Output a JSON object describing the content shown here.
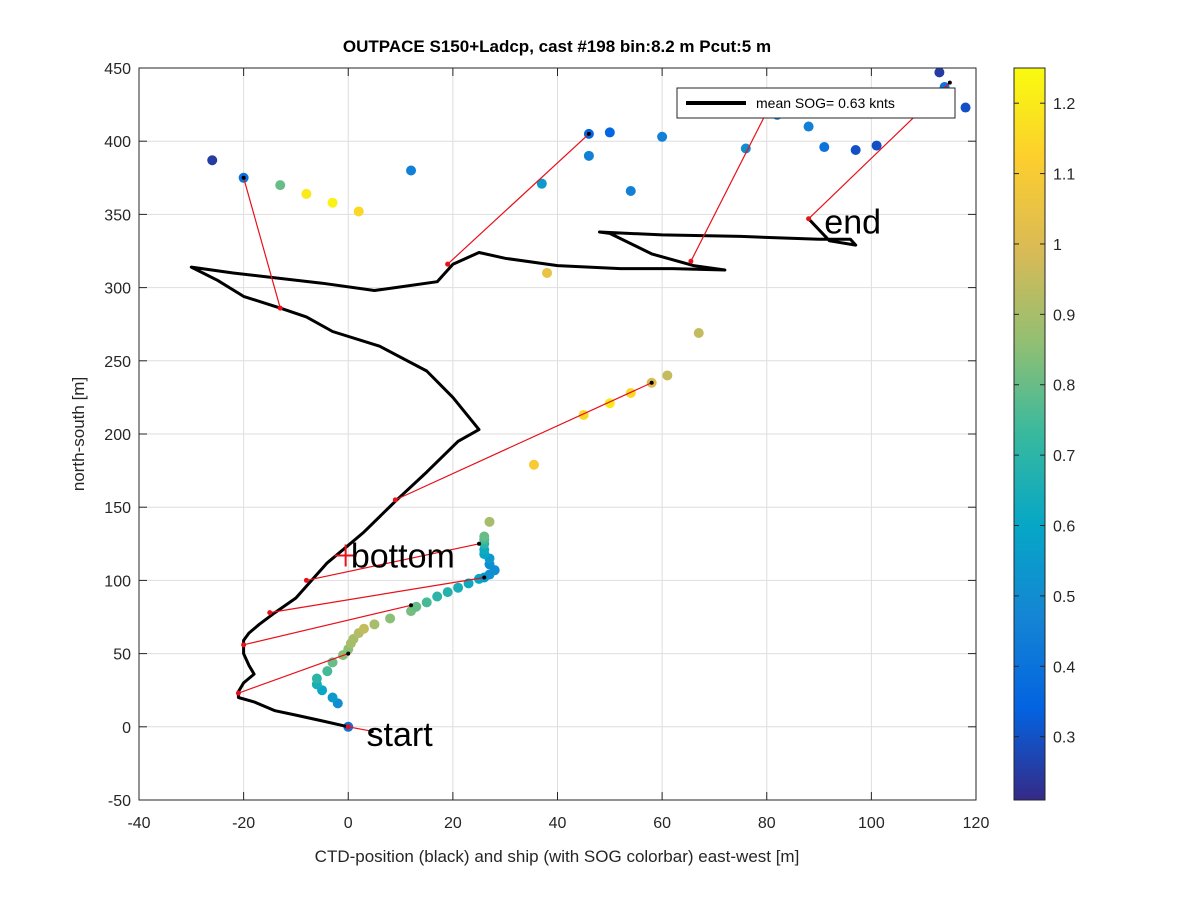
{
  "chart_data": {
    "type": "scatter",
    "title": "OUTPACE S150+Ladcp, cast #198 bin:8.2 m  Pcut:5 m",
    "xlabel": "CTD-position (black) and ship (with SOG colorbar) east-west [m]",
    "ylabel": "north-south [m]",
    "xlim": [
      -40,
      120
    ],
    "ylim": [
      -50,
      450
    ],
    "xticks": [
      "-40",
      "-20",
      "0",
      "20",
      "40",
      "60",
      "80",
      "100",
      "120"
    ],
    "yticks": [
      "-50",
      "0",
      "50",
      "100",
      "150",
      "200",
      "250",
      "300",
      "350",
      "400",
      "450"
    ],
    "grid": true,
    "legend": {
      "placement": "top-right",
      "entry": "mean SOG=  0.63 knts"
    },
    "colorbar": {
      "range": [
        0.21,
        1.25
      ],
      "ticks": [
        "0.3",
        "0.4",
        "0.5",
        "0.6",
        "0.7",
        "0.8",
        "0.9",
        "1",
        "1.1",
        "1.2"
      ],
      "colormap": [
        "#352a87",
        "#0363e1",
        "#1485d4",
        "#06a7c6",
        "#38b99e",
        "#92bf73",
        "#d9ba56",
        "#fcce2e",
        "#f9fb0e"
      ]
    },
    "annotations": [
      {
        "text": "start",
        "x": 3.5,
        "y": -5
      },
      {
        "text": "bottom",
        "x": 0.5,
        "y": 117
      },
      {
        "text": "end",
        "x": 91,
        "y": 345
      }
    ],
    "bottom_marker": {
      "x": -0.5,
      "y": 117
    },
    "ctd_track": [
      [
        0,
        0
      ],
      [
        -5,
        4
      ],
      [
        -10,
        8
      ],
      [
        -14,
        11
      ],
      [
        -18,
        17
      ],
      [
        -19,
        18
      ],
      [
        -21,
        20
      ],
      [
        -21,
        24
      ],
      [
        -20,
        30
      ],
      [
        -18,
        36
      ],
      [
        -19,
        42
      ],
      [
        -20,
        50
      ],
      [
        -20,
        54
      ],
      [
        -20,
        59
      ],
      [
        -19,
        64
      ],
      [
        -17,
        70
      ],
      [
        -14,
        78
      ],
      [
        -10,
        88
      ],
      [
        -7,
        100
      ],
      [
        -4,
        112
      ],
      [
        0,
        124
      ],
      [
        3,
        133
      ],
      [
        5,
        140
      ],
      [
        9,
        154
      ],
      [
        15,
        174
      ],
      [
        21,
        195
      ],
      [
        25,
        203
      ],
      [
        20,
        225
      ],
      [
        15,
        243
      ],
      [
        6,
        260
      ],
      [
        -3,
        270
      ],
      [
        -8,
        280
      ],
      [
        -13,
        286
      ],
      [
        -20,
        294
      ],
      [
        -25,
        305
      ],
      [
        -30,
        314
      ],
      [
        -22,
        310
      ],
      [
        -5,
        303
      ],
      [
        5,
        298
      ],
      [
        9,
        300
      ],
      [
        17,
        304
      ],
      [
        20,
        316
      ],
      [
        25,
        324
      ],
      [
        30,
        320
      ],
      [
        40,
        315
      ],
      [
        52,
        313
      ],
      [
        62,
        313
      ],
      [
        72,
        312
      ],
      [
        66,
        315
      ],
      [
        58,
        323
      ],
      [
        50,
        337
      ],
      [
        48,
        338
      ],
      [
        60,
        336
      ],
      [
        75,
        335
      ],
      [
        90,
        333
      ],
      [
        96,
        333
      ],
      [
        97,
        329
      ],
      [
        92,
        332
      ],
      [
        88,
        347
      ]
    ],
    "ship_points": [
      [
        0,
        0,
        0.4
      ],
      [
        -2,
        16,
        0.5
      ],
      [
        -3,
        20,
        0.55
      ],
      [
        -5,
        25,
        0.6
      ],
      [
        -6,
        29,
        0.65
      ],
      [
        -6,
        33,
        0.7
      ],
      [
        -4,
        38,
        0.75
      ],
      [
        -3,
        44,
        0.8
      ],
      [
        -1,
        49,
        0.85
      ],
      [
        0,
        53,
        0.85
      ],
      [
        0.5,
        57,
        0.9
      ],
      [
        1,
        60,
        0.9
      ],
      [
        2,
        64,
        0.92
      ],
      [
        3,
        67,
        0.95
      ],
      [
        5,
        70,
        0.9
      ],
      [
        8,
        74,
        0.85
      ],
      [
        12,
        79,
        0.82
      ],
      [
        13,
        82,
        0.8
      ],
      [
        15,
        85,
        0.75
      ],
      [
        17,
        89,
        0.7
      ],
      [
        19,
        92,
        0.68
      ],
      [
        21,
        95,
        0.65
      ],
      [
        23,
        98,
        0.62
      ],
      [
        25,
        101,
        0.6
      ],
      [
        26,
        102,
        0.55
      ],
      [
        27,
        104,
        0.52
      ],
      [
        28,
        107,
        0.5
      ],
      [
        27,
        111,
        0.5
      ],
      [
        27,
        115,
        0.55
      ],
      [
        26,
        118,
        0.6
      ],
      [
        26,
        121,
        0.62
      ],
      [
        26,
        125,
        0.7
      ],
      [
        26,
        128,
        0.75
      ],
      [
        26,
        130,
        0.8
      ],
      [
        27,
        140,
        0.9
      ],
      [
        35.5,
        179,
        1.1
      ],
      [
        45,
        213,
        1.15
      ],
      [
        50,
        221,
        1.2
      ],
      [
        54,
        228,
        1.15
      ],
      [
        58,
        235,
        1.0
      ],
      [
        61,
        240,
        0.95
      ],
      [
        67,
        269,
        0.95
      ],
      [
        38,
        310,
        1.05
      ],
      [
        -26,
        387,
        0.25
      ],
      [
        -20,
        375,
        0.4
      ],
      [
        -13,
        370,
        0.8
      ],
      [
        -8,
        364,
        1.2
      ],
      [
        -3,
        358,
        1.22
      ],
      [
        2,
        352,
        1.15
      ],
      [
        12,
        380,
        0.45
      ],
      [
        37,
        371,
        0.55
      ],
      [
        46,
        390,
        0.45
      ],
      [
        46,
        405,
        0.35
      ],
      [
        50,
        406,
        0.35
      ],
      [
        54,
        366,
        0.45
      ],
      [
        60,
        403,
        0.45
      ],
      [
        76,
        395,
        0.5
      ],
      [
        82,
        418,
        0.45
      ],
      [
        88,
        410,
        0.45
      ],
      [
        91,
        396,
        0.4
      ],
      [
        97,
        394,
        0.3
      ],
      [
        101,
        397,
        0.3
      ],
      [
        113,
        447,
        0.25
      ],
      [
        114,
        437,
        0.4
      ],
      [
        118,
        423,
        0.3
      ]
    ],
    "link_segments": [
      [
        [
          0,
          0
        ],
        [
          4.5,
          -3
        ]
      ],
      [
        [
          -21,
          23
        ],
        [
          0,
          50
        ]
      ],
      [
        [
          -20,
          56
        ],
        [
          12,
          83
        ]
      ],
      [
        [
          -15,
          78
        ],
        [
          26,
          102
        ]
      ],
      [
        [
          -8,
          100
        ],
        [
          25,
          125
        ]
      ],
      [
        [
          9,
          155
        ],
        [
          58,
          235
        ]
      ],
      [
        [
          -13,
          286
        ],
        [
          -20,
          375
        ]
      ],
      [
        [
          19,
          316
        ],
        [
          46,
          405
        ]
      ],
      [
        [
          65.5,
          318
        ],
        [
          80,
          420
        ]
      ],
      [
        [
          88,
          347
        ],
        [
          115,
          440
        ]
      ]
    ]
  }
}
